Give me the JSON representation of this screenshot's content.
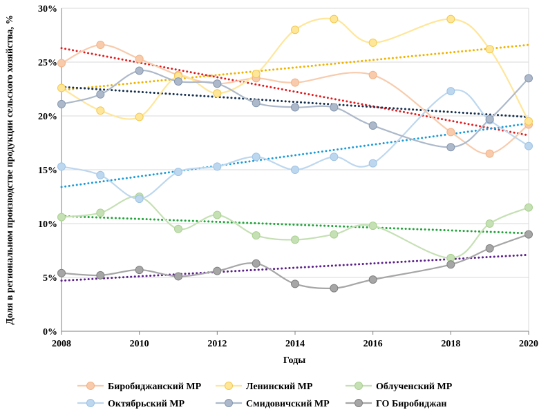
{
  "chart_data": {
    "type": "line",
    "title": "",
    "xlabel": "Годы",
    "ylabel": "Доля в региональном производстве продукции сельского хозяйства, %",
    "x": [
      2008,
      2009,
      2010,
      2011,
      2012,
      2013,
      2014,
      2015,
      2016,
      2017,
      2018,
      2019,
      2020
    ],
    "xlim": [
      2008,
      2020
    ],
    "ylim": [
      0,
      30
    ],
    "x_ticks": [
      "2008",
      "2010",
      "2012",
      "2014",
      "2016",
      "2018",
      "2020"
    ],
    "y_ticks": [
      "0%",
      "5%",
      "10%",
      "15%",
      "20%",
      "25%",
      "30%"
    ],
    "grid": "horizontal",
    "legend_position": "bottom",
    "series": [
      {
        "name": "Биробиджанский МР",
        "color": "#f8cbad",
        "marker": "#f4b183",
        "x": [
          2008,
          2009,
          2010,
          2011,
          2012,
          2013,
          2014,
          2016,
          2018,
          2019,
          2020
        ],
        "values": [
          24.9,
          26.6,
          25.3,
          23.8,
          23.0,
          23.5,
          23.1,
          23.8,
          18.5,
          16.5,
          19.2
        ],
        "trend_color": "#e31a1c",
        "trend": [
          26.3,
          18.2
        ]
      },
      {
        "name": "Ленинский МР",
        "color": "#ffe699",
        "marker": "#f2c94c",
        "x": [
          2008,
          2009,
          2010,
          2011,
          2012,
          2013,
          2014,
          2015,
          2016,
          2018,
          2019,
          2020
        ],
        "values": [
          22.6,
          20.5,
          19.9,
          23.7,
          22.1,
          23.9,
          28.0,
          29.0,
          26.8,
          29.0,
          26.2,
          19.5
        ],
        "trend_color": "#f0b400",
        "trend": [
          22.4,
          26.6
        ]
      },
      {
        "name": "Облученский МР",
        "color": "#c5e0b4",
        "marker": "#a9d18e",
        "x": [
          2008,
          2009,
          2010,
          2011,
          2012,
          2013,
          2014,
          2015,
          2016,
          2018,
          2019,
          2020
        ],
        "values": [
          10.6,
          11.0,
          12.5,
          9.5,
          10.8,
          8.9,
          8.5,
          9.0,
          9.8,
          6.8,
          10.0,
          11.5
        ],
        "trend_color": "#21a339",
        "trend": [
          10.7,
          9.1
        ]
      },
      {
        "name": "Октябрьский МР",
        "color": "#bdd7ee",
        "marker": "#9dc3e6",
        "x": [
          2008,
          2009,
          2010,
          2011,
          2012,
          2013,
          2014,
          2015,
          2016,
          2018,
          2019,
          2020
        ],
        "values": [
          15.3,
          14.5,
          12.3,
          14.8,
          15.3,
          16.2,
          15.0,
          16.2,
          15.6,
          22.3,
          19.6,
          17.2
        ],
        "trend_color": "#1a9bd7",
        "trend": [
          13.4,
          19.3
        ]
      },
      {
        "name": "Смидовичский МР",
        "color": "#adb9ca",
        "marker": "#8497b0",
        "x": [
          2008,
          2009,
          2010,
          2011,
          2012,
          2013,
          2014,
          2015,
          2016,
          2018,
          2019,
          2020
        ],
        "values": [
          21.1,
          22.0,
          24.2,
          23.2,
          23.0,
          21.2,
          20.8,
          20.8,
          19.1,
          17.1,
          19.7,
          23.5
        ],
        "trend_color": "#15304f",
        "trend": [
          22.7,
          19.9
        ]
      },
      {
        "name": "ГО Биробиджан",
        "color": "#a6a6a6",
        "marker": "#808080",
        "x": [
          2008,
          2009,
          2010,
          2011,
          2012,
          2013,
          2014,
          2015,
          2016,
          2018,
          2019,
          2020
        ],
        "values": [
          5.4,
          5.2,
          5.7,
          5.1,
          5.6,
          6.3,
          4.4,
          4.0,
          4.8,
          6.2,
          7.7,
          9.0
        ],
        "trend_color": "#5b1f8a",
        "trend": [
          4.7,
          7.1
        ]
      }
    ]
  }
}
